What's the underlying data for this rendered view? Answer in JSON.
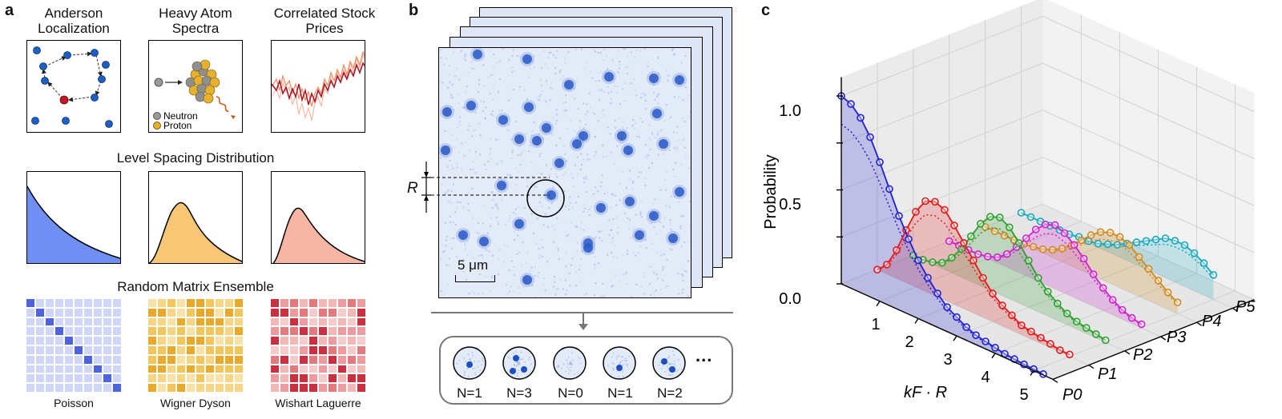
{
  "panel_a": {
    "letter": "a",
    "titles": [
      "Anderson Localization",
      "Heavy Atom Spectra",
      "Correlated Stock Prices"
    ],
    "heavy_atom_legend": [
      "Neutron",
      "Proton"
    ],
    "level_spacing_title": "Level Spacing Distribution",
    "random_matrix_title": "Random Matrix Ensemble",
    "ensembles": [
      "Poisson",
      "Wigner Dyson",
      "Wishart Laguerre"
    ],
    "colors": {
      "poisson": "#6f8ff2",
      "wigner": "#f7c776",
      "wishart": "#f7b5a4"
    }
  },
  "panel_b": {
    "letter": "b",
    "r_label": "R",
    "scale_bar": "5 μm",
    "counts": [
      "N=1",
      "N=3",
      "N=0",
      "N=1",
      "N=2"
    ],
    "more": "..."
  },
  "panel_c": {
    "letter": "c",
    "ylabel": "Probability",
    "xlabel": "kF · R",
    "ytick_labels": [
      "0.0",
      "0.5",
      "1.0"
    ],
    "xtick_labels": [
      "1",
      "2",
      "3",
      "4",
      "5"
    ],
    "ztick_labels": [
      "P0",
      "P1",
      "P2",
      "P3",
      "P4",
      "P5"
    ]
  },
  "chart_data": {
    "type": "line",
    "title": "",
    "xlabel": "kF · R",
    "ylabel": "Probability",
    "zlabel_categories": [
      "P0",
      "P1",
      "P2",
      "P3",
      "P4",
      "P5"
    ],
    "xlim": [
      0,
      5.5
    ],
    "ylim": [
      0,
      1.0
    ],
    "grid": true,
    "series": [
      {
        "color": "#1f1fd6",
        "x": [
          0,
          0.25,
          0.5,
          0.75,
          1,
          1.25,
          1.5,
          1.75,
          2,
          2.25,
          2.5,
          2.75,
          3,
          3.25,
          3.5,
          3.75,
          4,
          4.25,
          4.5,
          4.75,
          5,
          5.25
        ],
        "values": [
          1.0,
          0.98,
          0.93,
          0.85,
          0.74,
          0.62,
          0.5,
          0.4,
          0.31,
          0.24,
          0.18,
          0.13,
          0.1,
          0.07,
          0.05,
          0.04,
          0.03,
          0.02,
          0.015,
          0.01,
          0.008,
          0.005
        ]
      },
      {
        "color": "#e31a1c",
        "x": [
          0,
          0.25,
          0.5,
          0.75,
          1,
          1.25,
          1.5,
          1.75,
          2,
          2.25,
          2.5,
          2.75,
          3,
          3.25,
          3.5,
          3.75,
          4,
          4.25,
          4.5,
          4.75,
          5
        ],
        "values": [
          0.0,
          0.05,
          0.15,
          0.28,
          0.4,
          0.48,
          0.5,
          0.48,
          0.42,
          0.35,
          0.28,
          0.21,
          0.15,
          0.11,
          0.08,
          0.05,
          0.04,
          0.03,
          0.02,
          0.01,
          0.01
        ]
      },
      {
        "color": "#2ca02c",
        "x": [
          0,
          0.25,
          0.5,
          0.75,
          1,
          1.25,
          1.5,
          1.75,
          2,
          2.25,
          2.5,
          2.75,
          3,
          3.25,
          3.5,
          3.75,
          4,
          4.25,
          4.5,
          4.75,
          5
        ],
        "values": [
          0.0,
          0.0,
          0.01,
          0.03,
          0.08,
          0.15,
          0.24,
          0.33,
          0.39,
          0.41,
          0.38,
          0.32,
          0.25,
          0.18,
          0.13,
          0.09,
          0.06,
          0.04,
          0.03,
          0.02,
          0.01
        ]
      },
      {
        "color": "#d21fd2",
        "x": [
          0,
          0.25,
          0.5,
          0.75,
          1,
          1.25,
          1.5,
          1.75,
          2,
          2.25,
          2.5,
          2.75,
          3,
          3.25,
          3.5,
          3.75,
          4,
          4.25,
          4.5,
          4.75,
          5
        ],
        "values": [
          0.0,
          0.0,
          0.0,
          0.0,
          0.01,
          0.03,
          0.07,
          0.13,
          0.2,
          0.27,
          0.32,
          0.34,
          0.32,
          0.28,
          0.23,
          0.17,
          0.12,
          0.08,
          0.05,
          0.03,
          0.02
        ]
      },
      {
        "color": "#d38a1b",
        "x": [
          0,
          0.25,
          0.5,
          0.75,
          1,
          1.25,
          1.5,
          1.75,
          2,
          2.25,
          2.5,
          2.75,
          3,
          3.25,
          3.5,
          3.75,
          4,
          4.25,
          4.5,
          4.75,
          5
        ],
        "values": [
          0.0,
          0.0,
          0.0,
          0.0,
          0.0,
          0.01,
          0.02,
          0.04,
          0.07,
          0.11,
          0.16,
          0.21,
          0.25,
          0.27,
          0.27,
          0.25,
          0.21,
          0.17,
          0.13,
          0.09,
          0.06
        ]
      },
      {
        "color": "#17a8bd",
        "x": [
          0,
          0.25,
          0.5,
          0.75,
          1,
          1.25,
          1.5,
          1.75,
          2,
          2.25,
          2.5,
          2.75,
          3,
          3.25,
          3.5,
          3.75,
          4,
          4.25,
          4.5,
          4.75,
          5
        ],
        "values": [
          0.0,
          0.0,
          0.0,
          0.0,
          0.0,
          0.0,
          0.01,
          0.01,
          0.02,
          0.04,
          0.06,
          0.09,
          0.12,
          0.15,
          0.18,
          0.21,
          0.22,
          0.22,
          0.2,
          0.17,
          0.13
        ]
      }
    ]
  }
}
